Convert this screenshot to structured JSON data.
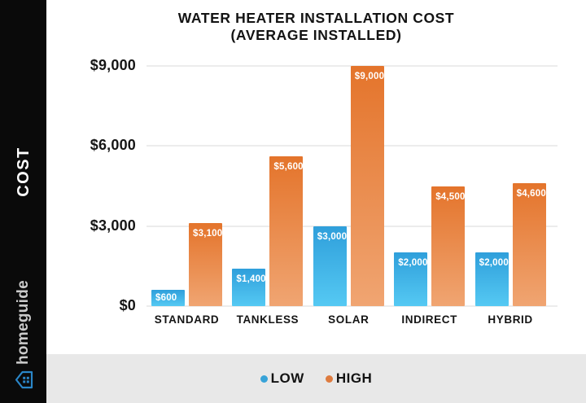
{
  "sidebar": {
    "axis_label": "COST",
    "brand": "homeguide",
    "brand_icon_color": "#2a86c8"
  },
  "chart_data": {
    "type": "bar",
    "title": "WATER HEATER INSTALLATION COST",
    "subtitle": "(AVERAGE INSTALLED)",
    "categories": [
      "STANDARD",
      "TANKLESS",
      "SOLAR",
      "INDIRECT",
      "HYBRID"
    ],
    "series": [
      {
        "name": "LOW",
        "color_top": "#2f9fdb",
        "color_bottom": "#55c9f3",
        "values": [
          600,
          1400,
          3000,
          2000,
          2000
        ],
        "labels": [
          "$600",
          "$1,400",
          "$3,000",
          "$2,000",
          "$2,000"
        ]
      },
      {
        "name": "HIGH",
        "color_top": "#e4742b",
        "color_bottom": "#f0a572",
        "values": [
          3100,
          5600,
          9000,
          4500,
          4600
        ],
        "labels": [
          "$3,100",
          "$5,600",
          "$9,000",
          "$4,500",
          "$4,600"
        ]
      }
    ],
    "ylim": [
      0,
      9000
    ],
    "yticks": [
      {
        "value": 0,
        "label": "$0"
      },
      {
        "value": 3000,
        "label": "$3,000"
      },
      {
        "value": 6000,
        "label": "$6,000"
      },
      {
        "value": 9000,
        "label": "$9,000"
      }
    ],
    "grid": true,
    "legend_position": "bottom"
  },
  "legend": {
    "items": [
      {
        "label": "LOW",
        "dot_color": "#38a3d8"
      },
      {
        "label": "HIGH",
        "dot_color": "#de7b3f"
      }
    ]
  }
}
